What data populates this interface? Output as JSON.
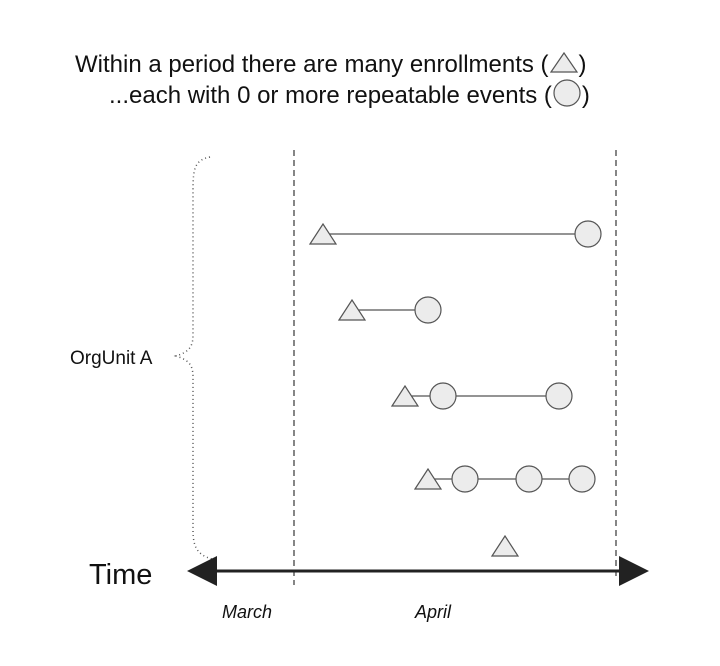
{
  "title": {
    "line1_text": "Within a period there are many enrollments (",
    "line1_close": ")",
    "line2_text": "...each with 0 or more repeatable events (",
    "line2_close": ")"
  },
  "labels": {
    "orgunit": "OrgUnit A",
    "time": "Time",
    "month_1": "March",
    "month_2": "April"
  },
  "legend": {
    "enrollment_shape": "triangle",
    "event_shape": "circle"
  },
  "colors": {
    "shape_fill": "#ececec",
    "shape_stroke": "#555555",
    "line": "#555555",
    "axis": "#222222",
    "period_boundary": "#444444",
    "brace": "#555555"
  },
  "enrollments": [
    {
      "events": 1
    },
    {
      "events": 1
    },
    {
      "events": 2
    },
    {
      "events": 3
    },
    {
      "events": 0
    }
  ]
}
